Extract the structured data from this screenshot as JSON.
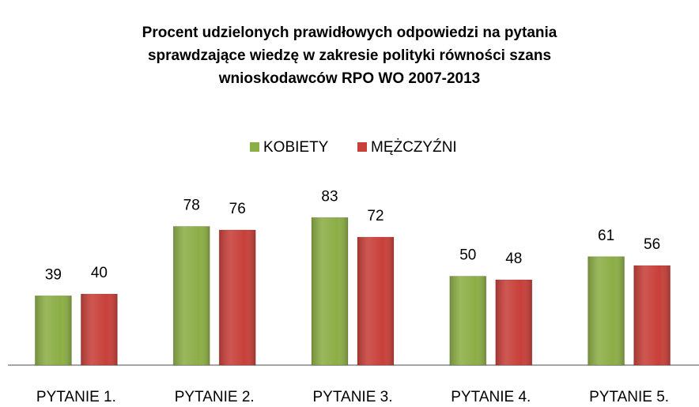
{
  "chart_data": {
    "type": "bar",
    "title": [
      "Procent udzielonych prawidłowych odpowiedzi na pytania",
      "sprawdzające wiedzę w zakresie polityki równości szans",
      "wnioskodawców RPO WO 2007-2013"
    ],
    "categories": [
      "PYTANIE 1.",
      "PYTANIE 2.",
      "PYTANIE 3.",
      "PYTANIE 4.",
      "PYTANIE 5."
    ],
    "series": [
      {
        "name": "KOBIETY",
        "color": "#8cae46",
        "values": [
          39,
          78,
          83,
          50,
          61
        ]
      },
      {
        "name": "MĘŻCZYŹNI",
        "color": "#c8403a",
        "values": [
          40,
          76,
          72,
          48,
          56
        ]
      }
    ],
    "legend": "top"
  }
}
